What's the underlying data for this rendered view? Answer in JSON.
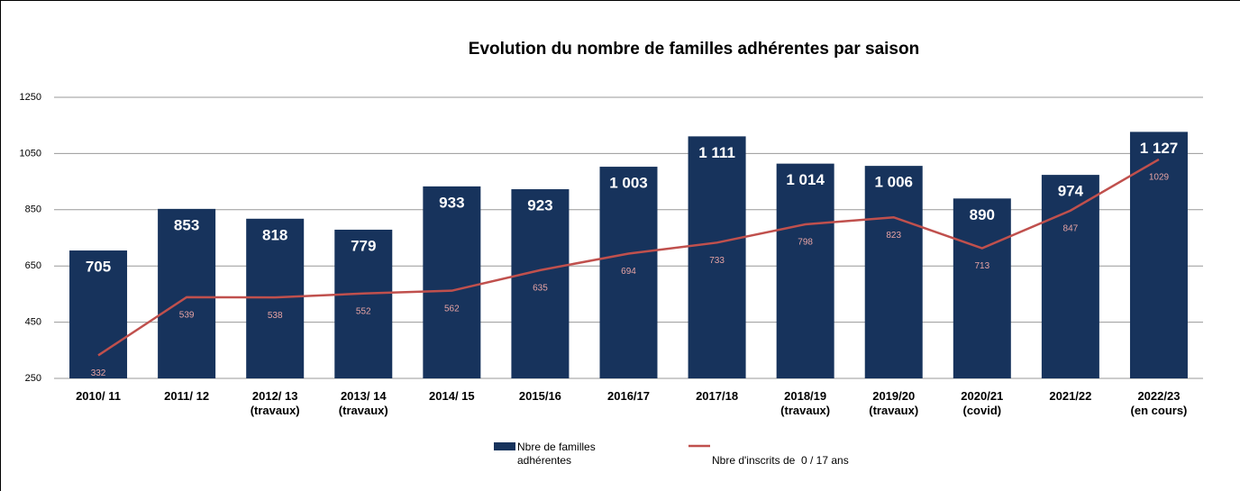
{
  "chart_data": {
    "type": "bar-line",
    "title": "Evolution du nombre de familles adhérentes par saison",
    "categories": [
      "2010/ 11",
      "2011/ 12",
      "2012/ 13\n(travaux)",
      "2013/ 14\n(travaux)",
      "2014/ 15",
      "2015/16",
      "2016/17",
      "2017/18",
      "2018/19\n(travaux)",
      "2019/20\n(travaux)",
      "2020/21\n(covid)",
      "2021/22",
      "2022/23\n(en cours)"
    ],
    "series": [
      {
        "name": "Nbre de familles adhérentes",
        "type": "bar",
        "color": "#17335c",
        "values": [
          705,
          853,
          818,
          779,
          933,
          923,
          1003,
          1111,
          1014,
          1006,
          890,
          974,
          1127
        ],
        "value_labels": [
          "705",
          "853",
          "818",
          "779",
          "933",
          "923",
          "1 003",
          "1 111",
          "1 014",
          "1 006",
          "890",
          "974",
          "1 127"
        ]
      },
      {
        "name": "Nbre d'inscrits de  0 / 17 ans",
        "type": "line",
        "color": "#c0504d",
        "values": [
          332,
          539,
          538,
          552,
          562,
          635,
          694,
          733,
          798,
          823,
          713,
          847,
          1029
        ]
      }
    ],
    "ylim": [
      250,
      1250
    ],
    "yticks": [
      250,
      450,
      650,
      850,
      1050,
      1250
    ],
    "grid": true,
    "legend": "bottom"
  }
}
